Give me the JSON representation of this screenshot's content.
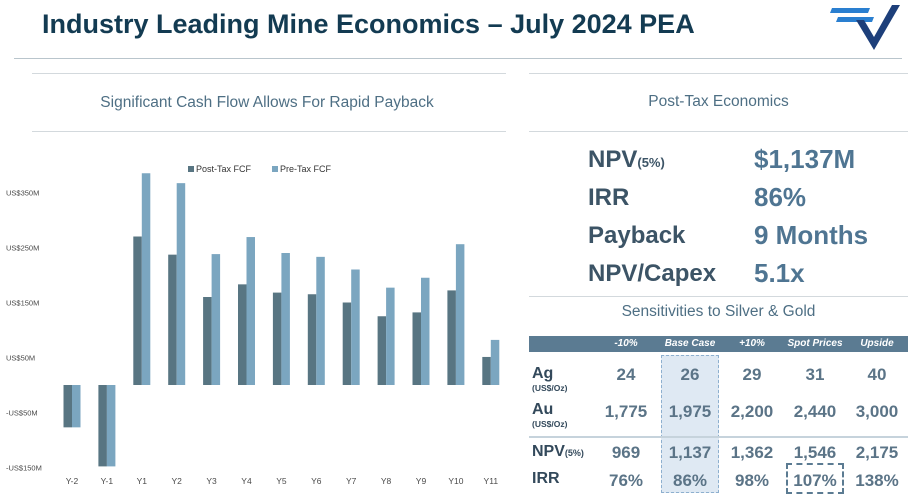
{
  "title": "Industry Leading Mine Economics – July 2024 PEA",
  "logo_icon": "checkmark-logo-icon",
  "left_heading": "Significant Cash Flow Allows For Rapid Payback",
  "right_heading": "Post-Tax Economics",
  "metrics": {
    "npv_label": "NPV",
    "npv_sub": "(5%)",
    "npv_value": "$1,137M",
    "irr_label": "IRR",
    "irr_value": "86%",
    "payback_label": "Payback",
    "payback_value": "9 Months",
    "capex_label": "NPV/Capex",
    "capex_value": "5.1x"
  },
  "sensitivity": {
    "heading": "Sensitivities to Silver & Gold",
    "columns": [
      "-10%",
      "Base Case",
      "+10%",
      "Spot Prices",
      "Upside"
    ],
    "ag_label": "Ag",
    "ag_unit": "(US$/Oz)",
    "au_label": "Au",
    "au_unit": "(US$/Oz)",
    "npv_label": "NPV",
    "npv_sub": "(5%)",
    "irr_label": "IRR",
    "ag": [
      "24",
      "26",
      "29",
      "31",
      "40"
    ],
    "au": [
      "1,775",
      "1,975",
      "2,200",
      "2,440",
      "3,000"
    ],
    "npv": [
      "969",
      "1,137",
      "1,362",
      "1,546",
      "2,175"
    ],
    "irr": [
      "76%",
      "86%",
      "98%",
      "107%",
      "138%"
    ]
  },
  "colors": {
    "post_tax": "#587582",
    "pre_tax": "#7ba6c0",
    "title": "#133b52",
    "accent": "#4f7592"
  },
  "chart_data": {
    "type": "bar",
    "title": "Significant Cash Flow Allows For Rapid Payback",
    "categories": [
      "Y-2",
      "Y-1",
      "Y1",
      "Y2",
      "Y3",
      "Y4",
      "Y5",
      "Y6",
      "Y7",
      "Y8",
      "Y9",
      "Y10",
      "Y11"
    ],
    "series": [
      {
        "name": "Post-Tax FCF",
        "values": [
          -77,
          -148,
          270,
          237,
          160,
          183,
          168,
          165,
          150,
          125,
          132,
          172,
          51
        ]
      },
      {
        "name": "Pre-Tax FCF",
        "values": [
          -77,
          -148,
          385,
          367,
          238,
          269,
          240,
          233,
          210,
          177,
          195,
          256,
          82
        ]
      }
    ],
    "ylim": [
      -150,
      400
    ],
    "yticks": [
      -150,
      -50,
      50,
      150,
      250,
      350
    ],
    "ytick_labels": [
      "-US$150M",
      "-US$50M",
      "US$50M",
      "US$150M",
      "US$250M",
      "US$350M"
    ],
    "legend": "top",
    "xlabel": "",
    "ylabel": ""
  }
}
